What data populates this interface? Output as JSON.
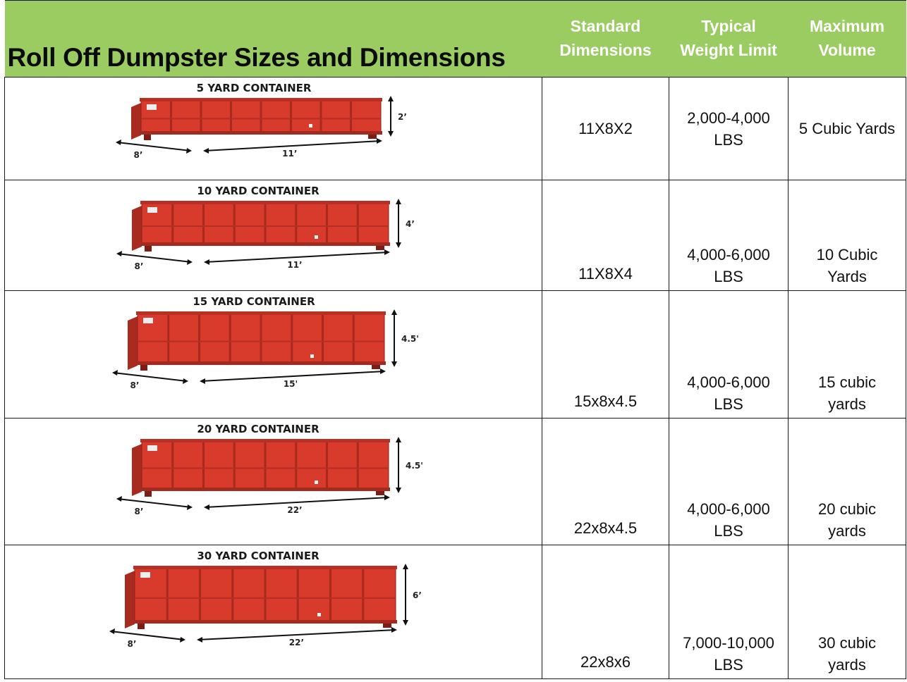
{
  "title": "Roll Off Dumpster Sizes and Dimensions",
  "headers": {
    "dimensions": [
      "Standard",
      "Dimensions"
    ],
    "weight": [
      "Typical",
      "Weight Limit"
    ],
    "volume": [
      "Maximum",
      "Volume"
    ]
  },
  "colors": {
    "header_bg": "#9bcc62",
    "container_red": "#d83a2c"
  },
  "rows": [
    {
      "caption": "5 YARD CONTAINER",
      "width_label": "8’",
      "length_label": "11’",
      "height_label": "2’",
      "dimensions": "11X8X2",
      "weight": [
        "2,000-4,000",
        "LBS"
      ],
      "volume": [
        "5 Cubic Yards"
      ]
    },
    {
      "caption": "10 YARD CONTAINER",
      "width_label": "8’",
      "length_label": "11’",
      "height_label": "4’",
      "dimensions": "11X8X4",
      "weight": [
        "4,000-6,000",
        "LBS"
      ],
      "volume": [
        "10 Cubic",
        "Yards"
      ]
    },
    {
      "caption": "15 YARD CONTAINER",
      "width_label": "8’",
      "length_label": "15'",
      "height_label": "4.5'",
      "dimensions": "15x8x4.5",
      "weight": [
        "4,000-6,000",
        "LBS"
      ],
      "volume": [
        "15 cubic",
        "yards"
      ]
    },
    {
      "caption": "20 YARD CONTAINER",
      "width_label": "8’",
      "length_label": "22’",
      "height_label": "4.5'",
      "dimensions": "22x8x4.5",
      "weight": [
        "4,000-6,000",
        "LBS"
      ],
      "volume": [
        "20 cubic",
        "yards"
      ]
    },
    {
      "caption": "30 YARD CONTAINER",
      "width_label": "8’",
      "length_label": "22’",
      "height_label": "6’",
      "dimensions": "22x8x6",
      "weight": [
        "7,000-10,000",
        "LBS"
      ],
      "volume": [
        "30 cubic",
        "yards"
      ]
    }
  ]
}
